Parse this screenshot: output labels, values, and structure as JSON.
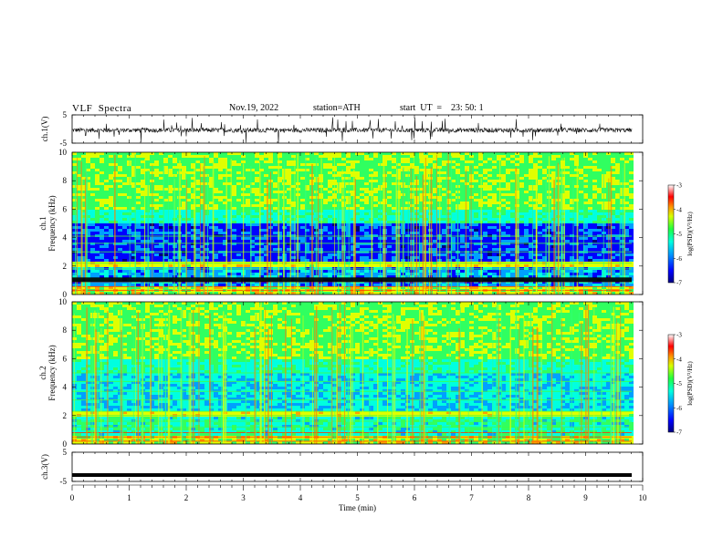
{
  "header": {
    "title": "VLF  Spectra",
    "date": "Nov.19, 2022",
    "station": "station=ATH",
    "start": "start  UT  =    23: 50: 1"
  },
  "colors": {
    "colormap": [
      "#00007a",
      "#0000ff",
      "#00a0ff",
      "#00ffe0",
      "#30ff60",
      "#e0ff00",
      "#ffa000",
      "#ff0000",
      "#ffffff"
    ]
  },
  "chart_data": [
    {
      "type": "line",
      "ylabel": "ch.1(V)",
      "ylim": [
        -5,
        5
      ],
      "yticks": [
        "5",
        "-5"
      ],
      "note": "dense VLF waveform with many spikes, centered near -0.4 V"
    },
    {
      "type": "heatmap",
      "ylabel": "ch.1\nFrequency  (kHz)",
      "xlim": [
        0,
        10
      ],
      "ylim": [
        0,
        10
      ],
      "yticks": [
        "0",
        "2",
        "4",
        "6",
        "8",
        "10"
      ],
      "colorbar": {
        "label": "log(PSD)(V²/Hz)",
        "range": [
          -7,
          -3
        ],
        "ticks": [
          "-3",
          "-4",
          "-5",
          "-6",
          "-7"
        ]
      }
    },
    {
      "type": "heatmap",
      "ylabel": "ch.2\nFrequency  (kHz)",
      "xlim": [
        0,
        10
      ],
      "ylim": [
        0,
        10
      ],
      "yticks": [
        "0",
        "2",
        "4",
        "6",
        "8",
        "10"
      ],
      "colorbar": {
        "label": "log(PSD)(V²/Hz)",
        "range": [
          -7,
          -3
        ],
        "ticks": [
          "-3",
          "-4",
          "-5",
          "-6",
          "-7"
        ]
      }
    },
    {
      "type": "line",
      "ylabel": "ch.3(V)",
      "xlabel": "Time  (min)",
      "xlim": [
        0,
        10
      ],
      "ylim": [
        -5,
        5
      ],
      "yticks": [
        "5",
        "-5"
      ],
      "xticks": [
        "0",
        "1",
        "2",
        "3",
        "4",
        "5",
        "6",
        "7",
        "8",
        "9",
        "10"
      ],
      "note": "flat thick trace near -2.8 V"
    }
  ]
}
